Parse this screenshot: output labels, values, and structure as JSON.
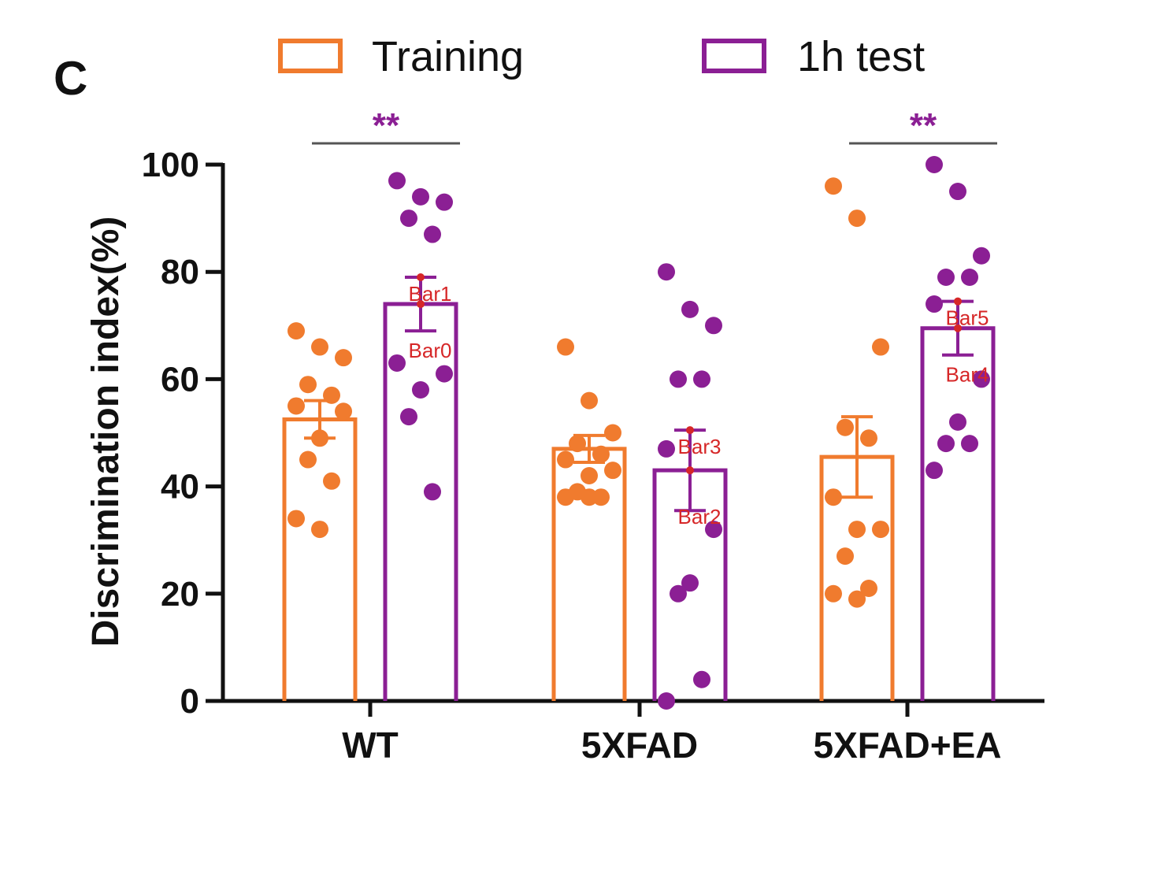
{
  "panel_label": "C",
  "colors": {
    "training": "#f07b2e",
    "test": "#8b1f94",
    "axis": "#111111",
    "tag": "#d62728"
  },
  "chart_data": {
    "type": "bar",
    "title": "",
    "xlabel": "",
    "ylabel": "Discrimination index(%)",
    "ylim": [
      0,
      100
    ],
    "yticks": [
      "0",
      "20",
      "40",
      "60",
      "80",
      "100"
    ],
    "categories": [
      "WT",
      "5XFAD",
      "5XFAD+EA"
    ],
    "legend": {
      "placement": "top",
      "entries": [
        "Training",
        "1h test"
      ]
    },
    "series": [
      {
        "name": "Training",
        "values": [
          52.5,
          47,
          45.5
        ],
        "sem": [
          3.5,
          2.5,
          7.5
        ],
        "points": [
          [
            69,
            66,
            64,
            59,
            57,
            55,
            54,
            49,
            45,
            41,
            34,
            32
          ],
          [
            66,
            56,
            50,
            48,
            46,
            45,
            43,
            42,
            39,
            38,
            38,
            38
          ],
          [
            96,
            90,
            66,
            51,
            49,
            38,
            32,
            32,
            27,
            21,
            20,
            19
          ]
        ]
      },
      {
        "name": "1h test",
        "values": [
          74,
          43,
          69.5
        ],
        "sem": [
          5,
          7.5,
          5
        ],
        "points": [
          [
            97,
            94,
            93,
            90,
            87,
            63,
            61,
            58,
            53,
            39
          ],
          [
            80,
            73,
            70,
            60,
            60,
            47,
            32,
            22,
            20,
            4,
            0
          ],
          [
            100,
            95,
            83,
            79,
            79,
            74,
            60,
            52,
            48,
            48,
            43
          ]
        ]
      }
    ],
    "bar_tags": [
      "Bar0",
      "Bar1",
      "Bar2",
      "Bar3",
      "Bar4",
      "Bar5"
    ],
    "significance": [
      {
        "category": "WT",
        "label": "**"
      },
      {
        "category": "5XFAD+EA",
        "label": "**"
      }
    ]
  }
}
